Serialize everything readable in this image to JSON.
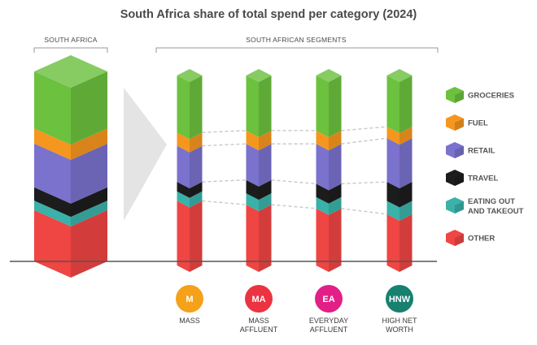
{
  "chart_data": {
    "type": "bar",
    "title": "South Africa share of total spend per category (2024)",
    "stacked": true,
    "groups": [
      {
        "label": "SOUTH AFRICA",
        "members": [
          "SA"
        ]
      },
      {
        "label": "SOUTH AFRICAN SEGMENTS",
        "members": [
          "M",
          "MA",
          "EA",
          "HNW"
        ]
      }
    ],
    "categories": [
      "SA",
      "M",
      "MA",
      "EA",
      "HNW"
    ],
    "series": [
      {
        "name": "OTHER",
        "color": "#ef4543",
        "values": [
          27,
          34,
          32,
          30,
          27
        ]
      },
      {
        "name": "EATING OUT AND TAKEOUT",
        "color": "#3ab1a9",
        "values": [
          5,
          5,
          6,
          6,
          7
        ]
      },
      {
        "name": "TRAVEL",
        "color": "#1c1c1c",
        "values": [
          7,
          5,
          7,
          7,
          10
        ]
      },
      {
        "name": "RETAIL",
        "color": "#7a72cc",
        "values": [
          23,
          19,
          19,
          21,
          23
        ]
      },
      {
        "name": "FUEL",
        "color": "#f5961e",
        "values": [
          8,
          7,
          7,
          7,
          6
        ]
      },
      {
        "name": "GROCERIES",
        "color": "#6cc13f",
        "values": [
          30,
          30,
          29,
          29,
          27
        ]
      }
    ],
    "segments": [
      {
        "badge": "M",
        "name": "MASS",
        "color": "#f5a11a"
      },
      {
        "badge": "MA",
        "name": "MASS AFFLUENT",
        "color": "#ec3341"
      },
      {
        "badge": "EA",
        "name": "EVERYDAY AFFLUENT",
        "color": "#e21f87"
      },
      {
        "badge": "HNW",
        "name": "HIGH NET WORTH",
        "color": "#17806f"
      }
    ],
    "legend": [
      "GROCERIES",
      "FUEL",
      "RETAIL",
      "TRAVEL",
      "EATING OUT AND TAKEOUT",
      "OTHER"
    ],
    "legend_position": "right"
  }
}
